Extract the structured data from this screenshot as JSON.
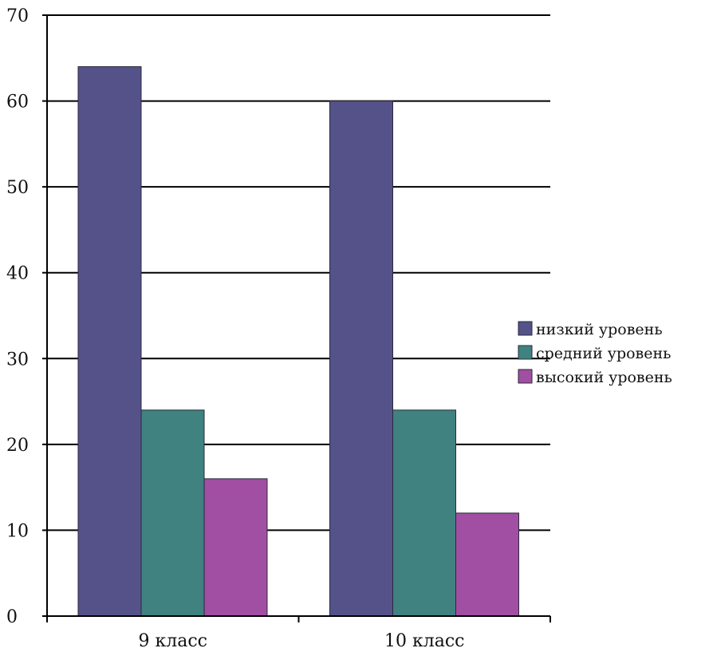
{
  "chart_data": {
    "type": "bar",
    "categories": [
      "9 класс",
      "10 класс"
    ],
    "series": [
      {
        "name": "низкий уровень",
        "values": [
          64,
          60
        ],
        "color": "#55528a"
      },
      {
        "name": "средний уровень",
        "values": [
          24,
          24
        ],
        "color": "#3f8280"
      },
      {
        "name": "высокий уровень",
        "values": [
          16,
          12
        ],
        "color": "#a04fa2"
      }
    ],
    "ylim": [
      0,
      70
    ],
    "yticks": [
      0,
      10,
      20,
      30,
      40,
      50,
      60,
      70
    ],
    "title": "",
    "xlabel": "",
    "ylabel": "",
    "grid": true,
    "legend_position": "right"
  }
}
